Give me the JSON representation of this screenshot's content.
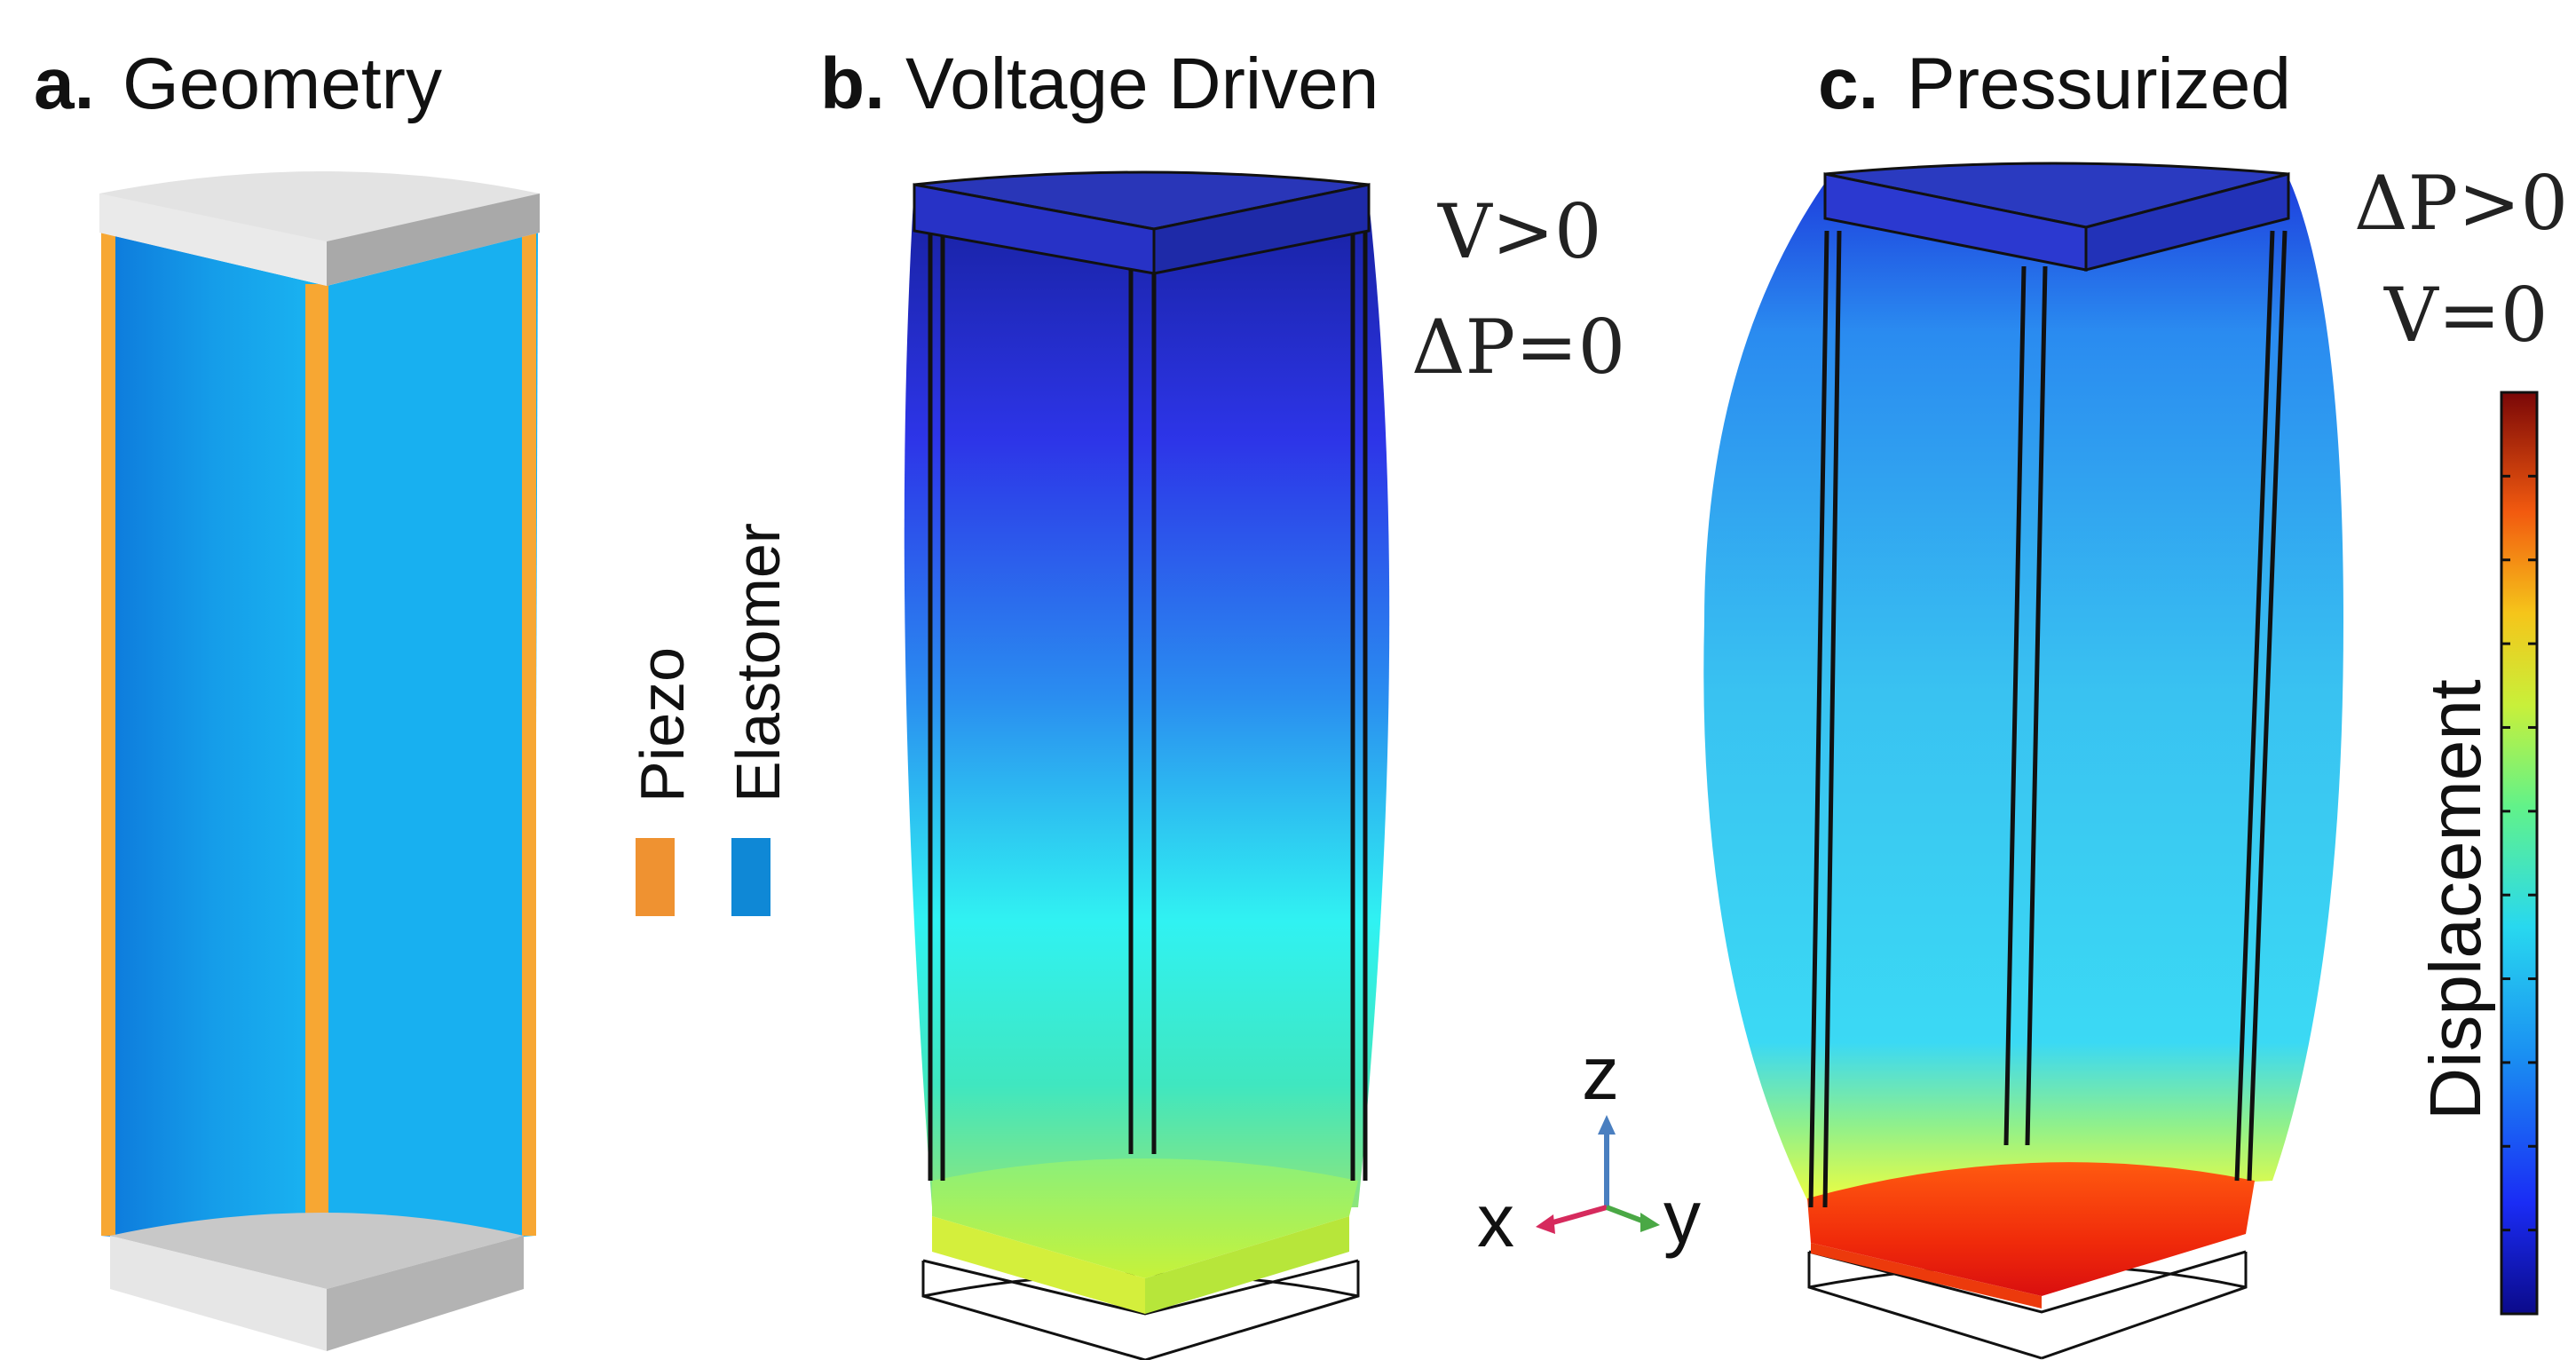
{
  "panels": {
    "a": {
      "letter": "a.",
      "title": "Geometry"
    },
    "b": {
      "letter": "b.",
      "title": "Voltage Driven",
      "cond1": "V>0",
      "cond2": "ΔP=0"
    },
    "c": {
      "letter": "c.",
      "title": "Pressurized",
      "cond1": "ΔP>0",
      "cond2": "V=0"
    }
  },
  "legend": {
    "piezo": {
      "label": "Piezo",
      "color": "#ef9231"
    },
    "elastomer": {
      "label": "Elastomer",
      "color": "#0f88d6"
    }
  },
  "axes": {
    "x": "x",
    "y": "y",
    "z": "z"
  },
  "colorbar": {
    "label": "Displacement",
    "ticks": 11
  },
  "colors": {
    "piezo_strip": "#f7a733",
    "elastomer": "#17aeee",
    "cap_top": "#d9d9d9",
    "cap_side": "#bdbdbd",
    "z_axis": "#4a7fc0",
    "x_axis": "#d62a5d",
    "y_axis": "#4aa845"
  }
}
